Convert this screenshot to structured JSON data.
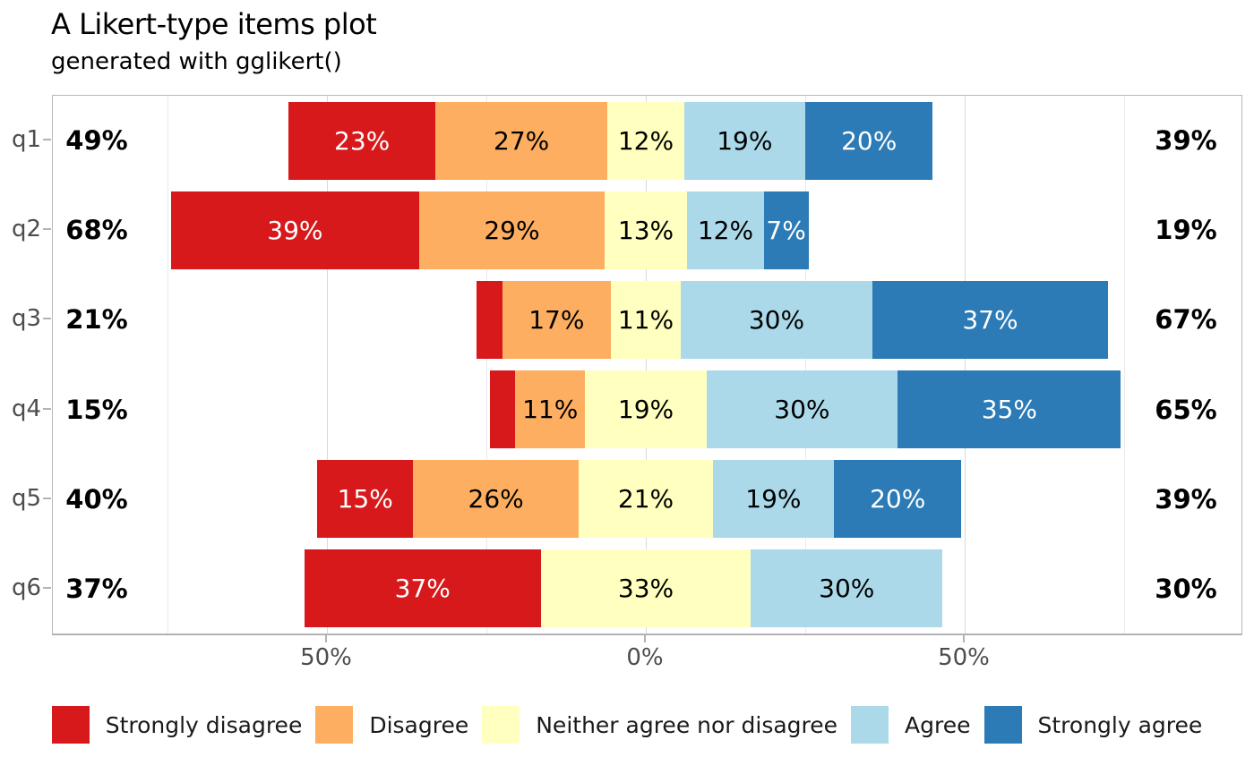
{
  "title": "A Likert-type items plot",
  "subtitle": "generated with gglikert()",
  "colors": {
    "strongly_disagree": "#d7191c",
    "disagree": "#fdae61",
    "neither": "#ffffbf",
    "agree": "#abd9e9",
    "strongly_agree": "#2c7bb6",
    "axis_text": "#4d4d4d",
    "grid_major": "#d9d9d9",
    "grid_minor": "#e9e9e9",
    "panel_border": "#b8b8b8"
  },
  "chart_data": {
    "type": "bar",
    "subtype": "diverging_stacked_likert",
    "orientation": "horizontal",
    "title": "A Likert-type items plot",
    "subtitle": "generated with gglikert()",
    "categories": [
      "q1",
      "q2",
      "q3",
      "q4",
      "q5",
      "q6"
    ],
    "levels": [
      {
        "name": "Strongly disagree",
        "color": "#d7191c",
        "label_color": "#ffffff"
      },
      {
        "name": "Disagree",
        "color": "#fdae61",
        "label_color": "#000000"
      },
      {
        "name": "Neither agree nor disagree",
        "color": "#ffffbf",
        "label_color": "#000000"
      },
      {
        "name": "Agree",
        "color": "#abd9e9",
        "label_color": "#000000"
      },
      {
        "name": "Strongly agree",
        "color": "#2c7bb6",
        "label_color": "#ffffff"
      }
    ],
    "x_axis": {
      "unit": "percent",
      "ticks": [
        {
          "value": -50,
          "label": "50%"
        },
        {
          "value": 0,
          "label": "0%"
        },
        {
          "value": 50,
          "label": "50%"
        }
      ],
      "minor_ticks": [
        -75,
        -25,
        25,
        75
      ],
      "range": [
        -93,
        94
      ]
    },
    "legend_position": "bottom",
    "rows": [
      {
        "item": "q1",
        "left_total": "49%",
        "right_total": "39%",
        "segments": [
          {
            "level": 0,
            "value": 23,
            "label": "23%"
          },
          {
            "level": 1,
            "value": 27,
            "label": "27%"
          },
          {
            "level": 2,
            "value": 12,
            "label": "12%"
          },
          {
            "level": 3,
            "value": 19,
            "label": "19%"
          },
          {
            "level": 4,
            "value": 20,
            "label": "20%"
          }
        ]
      },
      {
        "item": "q2",
        "left_total": "68%",
        "right_total": "19%",
        "segments": [
          {
            "level": 0,
            "value": 39,
            "label": "39%"
          },
          {
            "level": 1,
            "value": 29,
            "label": "29%"
          },
          {
            "level": 2,
            "value": 13,
            "label": "13%"
          },
          {
            "level": 3,
            "value": 12,
            "label": "12%"
          },
          {
            "level": 4,
            "value": 7,
            "label": "7%"
          }
        ]
      },
      {
        "item": "q3",
        "left_total": "21%",
        "right_total": "67%",
        "segments": [
          {
            "level": 0,
            "value": 4,
            "label": ""
          },
          {
            "level": 1,
            "value": 17,
            "label": "17%"
          },
          {
            "level": 2,
            "value": 11,
            "label": "11%"
          },
          {
            "level": 3,
            "value": 30,
            "label": "30%"
          },
          {
            "level": 4,
            "value": 37,
            "label": "37%"
          }
        ]
      },
      {
        "item": "q4",
        "left_total": "15%",
        "right_total": "65%",
        "segments": [
          {
            "level": 0,
            "value": 4,
            "label": ""
          },
          {
            "level": 1,
            "value": 11,
            "label": "11%"
          },
          {
            "level": 2,
            "value": 19,
            "label": "19%"
          },
          {
            "level": 3,
            "value": 30,
            "label": "30%"
          },
          {
            "level": 4,
            "value": 35,
            "label": "35%"
          }
        ]
      },
      {
        "item": "q5",
        "left_total": "40%",
        "right_total": "39%",
        "segments": [
          {
            "level": 0,
            "value": 15,
            "label": "15%"
          },
          {
            "level": 1,
            "value": 26,
            "label": "26%"
          },
          {
            "level": 2,
            "value": 21,
            "label": "21%"
          },
          {
            "level": 3,
            "value": 19,
            "label": "19%"
          },
          {
            "level": 4,
            "value": 20,
            "label": "20%"
          }
        ]
      },
      {
        "item": "q6",
        "left_total": "37%",
        "right_total": "30%",
        "segments": [
          {
            "level": 0,
            "value": 37,
            "label": "37%"
          },
          {
            "level": 2,
            "value": 33,
            "label": "33%"
          },
          {
            "level": 3,
            "value": 30,
            "label": "30%"
          }
        ]
      }
    ]
  }
}
